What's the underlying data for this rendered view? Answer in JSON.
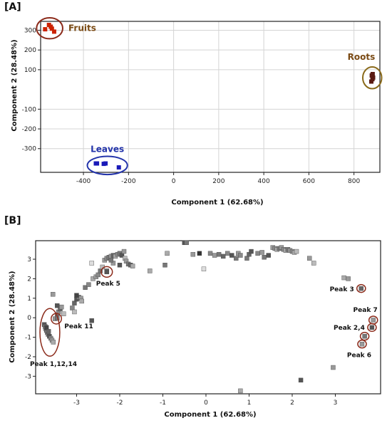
{
  "chart_data": [
    {
      "panel": "[A]",
      "type": "scatter",
      "xlabel": "Component 1 (62.68%)",
      "ylabel": "Component 2 (28.48%)",
      "xlim": [
        -590,
        915
      ],
      "ylim": [
        -420,
        345
      ],
      "xticks": [
        -400,
        -200,
        0,
        200,
        400,
        600,
        800
      ],
      "yticks": [
        -300,
        -200,
        -100,
        100,
        200,
        300
      ],
      "grid": true,
      "colors": {
        "fruits": "#cc2200",
        "leaves": "#1a1ab8",
        "roots": "#5a1a12",
        "fruits_label": "#7a4a14",
        "leaves_label": "#2233aa",
        "roots_label": "#7a4a14",
        "fruits_ring": "#8b2a1a",
        "leaves_ring": "#2233aa",
        "roots_ring": "#8a6a1a"
      },
      "groups": [
        {
          "name": "Fruits",
          "points": [
            [
              -570,
              305
            ],
            [
              -553,
              327
            ],
            [
              -545,
              318
            ],
            [
              -540,
              308
            ],
            [
              -530,
              293
            ]
          ]
        },
        {
          "name": "Leaves",
          "points": [
            [
              -345,
              -375
            ],
            [
              -340,
              -375
            ],
            [
              -310,
              -377
            ],
            [
              -302,
              -375
            ],
            [
              -243,
              -395
            ]
          ]
        },
        {
          "name": "Roots",
          "points": [
            [
              877,
              40
            ],
            [
              882,
              52
            ],
            [
              885,
              60
            ],
            [
              879,
              71
            ],
            [
              883,
              78
            ]
          ]
        }
      ]
    },
    {
      "panel": "[B]",
      "type": "scatter",
      "xlabel": "Component 1 (62.68%)",
      "ylabel": "Component 2 (28.48%)",
      "xlim": [
        -3.95,
        4.05
      ],
      "ylim": [
        -3.9,
        3.95
      ],
      "xticks": [
        -3,
        -2,
        -1,
        0,
        1,
        2,
        3
      ],
      "yticks": [
        -3,
        -2,
        -1,
        0,
        1,
        2,
        3
      ],
      "grid": false,
      "ring_color": "#8b2a1a",
      "points": [
        [
          -3.75,
          -0.35,
          "#555"
        ],
        [
          -3.73,
          -0.45,
          "#777"
        ],
        [
          -3.72,
          -0.55,
          "#999"
        ],
        [
          -3.7,
          -0.65,
          "#666"
        ],
        [
          -3.68,
          -0.75,
          "#888"
        ],
        [
          -3.66,
          -0.85,
          "#777"
        ],
        [
          -3.63,
          -0.95,
          "#555"
        ],
        [
          -3.6,
          -1.05,
          "#888"
        ],
        [
          -3.57,
          -1.15,
          "#999"
        ],
        [
          -3.54,
          -1.25,
          "#aaa"
        ],
        [
          -3.7,
          -0.5,
          "#444"
        ],
        [
          -3.65,
          -0.7,
          "#666"
        ],
        [
          -3.5,
          -0.05,
          "#999"
        ],
        [
          -3.45,
          0.1,
          "#777"
        ],
        [
          -3.42,
          0.3,
          "#888"
        ],
        [
          -3.38,
          0.45,
          "#666"
        ],
        [
          -3.45,
          0.62,
          "#555"
        ],
        [
          -3.35,
          0.55,
          "#999"
        ],
        [
          -3.3,
          0.2,
          "#bbb"
        ],
        [
          -3.55,
          1.2,
          "#999"
        ],
        [
          -3.1,
          0.5,
          "#888"
        ],
        [
          -3.05,
          0.75,
          "#666"
        ],
        [
          -3.0,
          0.95,
          "#555"
        ],
        [
          -2.95,
          1.05,
          "#777"
        ],
        [
          -2.9,
          1.0,
          "#999"
        ],
        [
          -2.88,
          0.85,
          "#aaa"
        ],
        [
          -3.0,
          1.15,
          "#444"
        ],
        [
          -3.05,
          0.3,
          "#bbb"
        ],
        [
          -2.65,
          -0.15,
          "#555"
        ],
        [
          -2.8,
          1.55,
          "#777"
        ],
        [
          -2.72,
          1.7,
          "#888"
        ],
        [
          -2.62,
          2.0,
          "#aaa"
        ],
        [
          -2.55,
          2.1,
          "#999"
        ],
        [
          -2.5,
          2.2,
          "#888"
        ],
        [
          -2.45,
          2.4,
          "#777"
        ],
        [
          -2.4,
          2.6,
          "#bbb"
        ],
        [
          -2.35,
          2.95,
          "#999"
        ],
        [
          -2.3,
          3.05,
          "#888"
        ],
        [
          -2.25,
          3.1,
          "#777"
        ],
        [
          -2.2,
          3.15,
          "#999"
        ],
        [
          -2.15,
          3.2,
          "#666"
        ],
        [
          -2.1,
          3.15,
          "#aaa"
        ],
        [
          -2.05,
          3.25,
          "#888"
        ],
        [
          -2.0,
          3.3,
          "#777"
        ],
        [
          -1.95,
          3.2,
          "#555"
        ],
        [
          -1.9,
          3.4,
          "#999"
        ],
        [
          -1.88,
          3.05,
          "#bbb"
        ],
        [
          -1.85,
          2.9,
          "#999"
        ],
        [
          -1.8,
          2.75,
          "#777"
        ],
        [
          -1.75,
          2.7,
          "#666"
        ],
        [
          -1.7,
          2.65,
          "#aaa"
        ],
        [
          -2.15,
          2.8,
          "#999"
        ],
        [
          -2.0,
          2.7,
          "#555"
        ],
        [
          -2.2,
          2.95,
          "#777"
        ],
        [
          -2.65,
          2.8,
          "#ddd"
        ],
        [
          -2.3,
          2.4,
          "#777"
        ],
        [
          -1.3,
          2.4,
          "#aaa"
        ],
        [
          -0.9,
          3.3,
          "#aaa"
        ],
        [
          -0.95,
          2.7,
          "#777"
        ],
        [
          -0.5,
          3.85,
          "#555"
        ],
        [
          -0.45,
          3.85,
          "#777"
        ],
        [
          -0.3,
          3.25,
          "#999"
        ],
        [
          -0.15,
          3.3,
          "#333"
        ],
        [
          -0.05,
          2.5,
          "#ddd"
        ],
        [
          0.1,
          3.3,
          "#888"
        ],
        [
          0.2,
          3.2,
          "#999"
        ],
        [
          0.3,
          3.25,
          "#777"
        ],
        [
          0.4,
          3.15,
          "#666"
        ],
        [
          0.5,
          3.3,
          "#888"
        ],
        [
          0.6,
          3.2,
          "#555"
        ],
        [
          0.7,
          3.05,
          "#777"
        ],
        [
          0.75,
          3.3,
          "#999"
        ],
        [
          0.8,
          3.2,
          "#888"
        ],
        [
          0.95,
          3.05,
          "#777"
        ],
        [
          1.0,
          3.25,
          "#666"
        ],
        [
          1.05,
          3.4,
          "#555"
        ],
        [
          1.2,
          3.3,
          "#888"
        ],
        [
          1.3,
          3.35,
          "#999"
        ],
        [
          1.35,
          3.1,
          "#777"
        ],
        [
          1.45,
          3.2,
          "#555"
        ],
        [
          1.55,
          3.6,
          "#999"
        ],
        [
          1.6,
          3.55,
          "#888"
        ],
        [
          1.65,
          3.5,
          "#aaa"
        ],
        [
          1.7,
          3.55,
          "#777"
        ],
        [
          1.75,
          3.6,
          "#999"
        ],
        [
          1.8,
          3.5,
          "#888"
        ],
        [
          1.85,
          3.45,
          "#aaa"
        ],
        [
          1.9,
          3.5,
          "#777"
        ],
        [
          1.95,
          3.45,
          "#999"
        ],
        [
          2.0,
          3.4,
          "#888"
        ],
        [
          2.05,
          3.35,
          "#aaa"
        ],
        [
          2.1,
          3.4,
          "#bbb"
        ],
        [
          2.4,
          3.05,
          "#999"
        ],
        [
          2.5,
          2.8,
          "#bbb"
        ],
        [
          3.2,
          2.05,
          "#aaa"
        ],
        [
          3.3,
          2.0,
          "#999"
        ],
        [
          3.6,
          1.5,
          "#666"
        ],
        [
          2.95,
          -2.55,
          "#999"
        ],
        [
          2.2,
          -3.2,
          "#555"
        ],
        [
          0.8,
          -3.75,
          "#aaa"
        ],
        [
          3.88,
          -0.12,
          "#999"
        ],
        [
          3.85,
          -0.5,
          "#555"
        ],
        [
          3.68,
          -0.95,
          "#777"
        ],
        [
          3.62,
          -1.35,
          "#999"
        ],
        [
          -2.3,
          2.35,
          "#555"
        ],
        [
          -3.45,
          -0.02,
          "#777"
        ]
      ],
      "rings": [
        {
          "label": "Peak 1,12,14",
          "cx": -3.62,
          "cy": -0.75,
          "rx": 0.23,
          "ry": 1.22
        },
        {
          "label": "Peak 11",
          "cx": -3.47,
          "cy": -0.05,
          "rx": 0.12,
          "ry": 0.27
        },
        {
          "label": "Peak 5",
          "cx": -2.3,
          "cy": 2.35,
          "rx": 0.13,
          "ry": 0.27
        },
        {
          "label": "Peak 3",
          "cx": 3.6,
          "cy": 1.5,
          "rx": 0.1,
          "ry": 0.2
        },
        {
          "label": "Peak 7",
          "cx": 3.88,
          "cy": -0.12,
          "rx": 0.1,
          "ry": 0.2
        },
        {
          "label": "Peak 2,4",
          "cx": 3.85,
          "cy": -0.5,
          "rx": 0.1,
          "ry": 0.2
        },
        {
          "label": "",
          "cx": 3.68,
          "cy": -0.95,
          "rx": 0.1,
          "ry": 0.2
        },
        {
          "label": "Peak 6",
          "cx": 3.62,
          "cy": -1.35,
          "rx": 0.1,
          "ry": 0.2
        }
      ]
    }
  ]
}
